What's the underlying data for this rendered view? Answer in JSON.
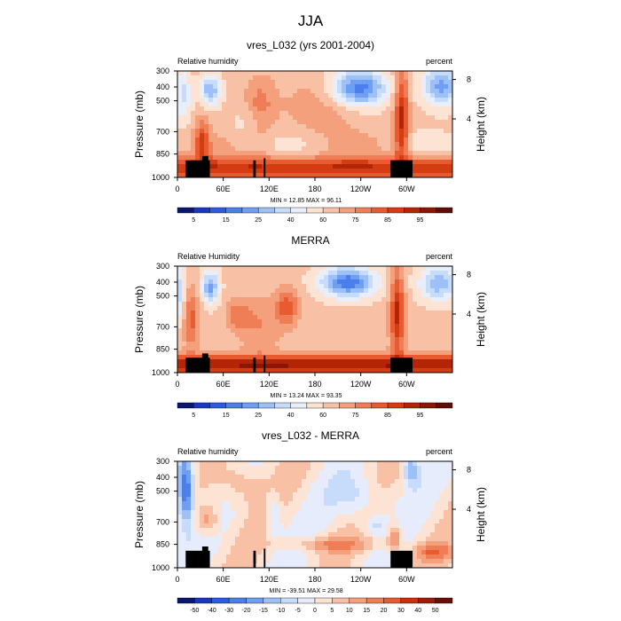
{
  "figure_title": "JJA",
  "chart_data": [
    {
      "type": "heatmap",
      "title": "vres_L032 (yrs 2001-2004)",
      "left_label": "Relative humidity",
      "right_label": "percent",
      "ylabel": "Pressure (mb)",
      "ylabel_right": "Height (km)",
      "x_ticks": [
        "0",
        "60E",
        "120E",
        "180",
        "120W",
        "60W"
      ],
      "y_ticks": [
        "300",
        "400",
        "500",
        "700",
        "850",
        "1000"
      ],
      "y_ticks_right": [
        "8",
        "4"
      ],
      "stats": "MIN = 12.85  MAX = 96.11",
      "min": 12.85,
      "max": 96.11,
      "colorbar_labels": [
        "5",
        "15",
        "25",
        "40",
        "60",
        "75",
        "85",
        "95"
      ],
      "colors": [
        "#0a1670",
        "#1837c6",
        "#2a5be0",
        "#4a7fec",
        "#6f9ff2",
        "#9cc0f7",
        "#c7dcfb",
        "#e9eefb",
        "#fde3d3",
        "#f8c1a5",
        "#f4a07d",
        "#ef7d55",
        "#e85a30",
        "#d43d12",
        "#b22607",
        "#8c1604",
        "#5f0c02"
      ],
      "field": "sample"
    },
    {
      "type": "heatmap",
      "title": "MERRA",
      "left_label": "Relative Humidity",
      "right_label": "percent",
      "ylabel": "Pressure (mb)",
      "ylabel_right": "Height (km)",
      "x_ticks": [
        "0",
        "60E",
        "120E",
        "180",
        "120W",
        "60W"
      ],
      "y_ticks": [
        "300",
        "400",
        "500",
        "700",
        "850",
        "1000"
      ],
      "y_ticks_right": [
        "8",
        "4"
      ],
      "stats": "MIN = 13.24  MAX = 93.35",
      "min": 13.24,
      "max": 93.35,
      "colorbar_labels": [
        "5",
        "15",
        "25",
        "40",
        "60",
        "75",
        "85",
        "95"
      ],
      "colors": [
        "#0a1670",
        "#1837c6",
        "#2a5be0",
        "#4a7fec",
        "#6f9ff2",
        "#9cc0f7",
        "#c7dcfb",
        "#e9eefb",
        "#fde3d3",
        "#f8c1a5",
        "#f4a07d",
        "#ef7d55",
        "#e85a30",
        "#d43d12",
        "#b22607",
        "#8c1604",
        "#5f0c02"
      ],
      "field": "merra"
    },
    {
      "type": "heatmap",
      "title": "vres_L032 - MERRA",
      "left_label": "Relative humidity",
      "right_label": "percent",
      "ylabel": "Pressure (mb)",
      "ylabel_right": "Height (km)",
      "x_ticks": [
        "0",
        "60E",
        "120E",
        "180",
        "120W",
        "60W"
      ],
      "y_ticks": [
        "300",
        "400",
        "500",
        "700",
        "850",
        "1000"
      ],
      "y_ticks_right": [
        "8",
        "4"
      ],
      "stats": "MIN = -39.51  MAX = 29.58",
      "min": -39.51,
      "max": 29.58,
      "colorbar_labels": [
        "-50",
        "-40",
        "-30",
        "-20",
        "-15",
        "-10",
        "-5",
        "0",
        "5",
        "10",
        "15",
        "20",
        "30",
        "40",
        "50"
      ],
      "colors": [
        "#0a1670",
        "#1837c6",
        "#2a5be0",
        "#4a7fec",
        "#6f9ff2",
        "#9cc0f7",
        "#c7dcfb",
        "#e6ecfb",
        "#fde3d3",
        "#f8c1a5",
        "#f4a07d",
        "#ef7d55",
        "#e85a30",
        "#c8320b",
        "#9e1d05",
        "#6c0f02"
      ],
      "field": "diff"
    }
  ]
}
